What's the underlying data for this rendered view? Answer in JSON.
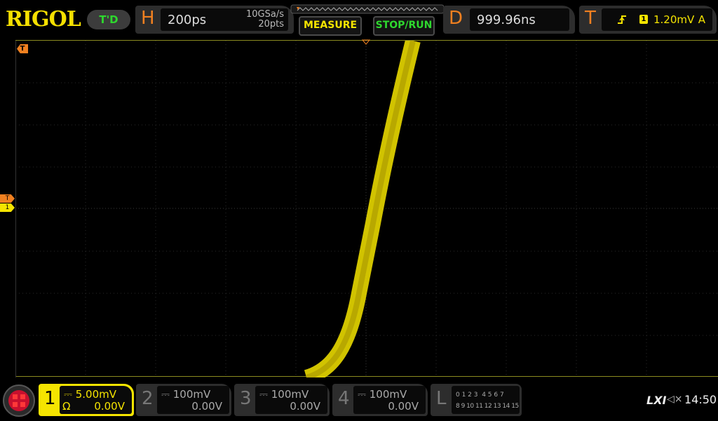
{
  "brand": "RIGOL",
  "mode_badge": "T'D",
  "horizontal": {
    "letter": "H",
    "timebase": "200ps",
    "sample_rate": "10GSa/s",
    "points": "20pts"
  },
  "buttons": {
    "measure": "MEASURE",
    "stop_run": "STOP/RUN"
  },
  "delay": {
    "letter": "D",
    "value": "999.96ns"
  },
  "trigger": {
    "letter": "T",
    "slope_icon": "rising-edge-icon",
    "source": "1",
    "level": "1.20mV",
    "mode": "A"
  },
  "markers": {
    "trigger_pos": "T",
    "trigger_level": "T",
    "channel1": "1"
  },
  "channels": [
    {
      "num": "1",
      "scale": "5.00mV",
      "offset": "0.00V",
      "impedance": "Ω",
      "active": true
    },
    {
      "num": "2",
      "scale": "100mV",
      "offset": "0.00V"
    },
    {
      "num": "3",
      "scale": "100mV",
      "offset": "0.00V"
    },
    {
      "num": "4",
      "scale": "100mV",
      "offset": "0.00V"
    }
  ],
  "logic": {
    "letter": "L",
    "row1": "0 1 2 3  4 5 6 7",
    "row2": "8 9 10 11 12 13 14 15"
  },
  "status": {
    "lxi": "LXI",
    "time": "14:50"
  },
  "colors": {
    "ch1": "#f5e400",
    "accent": "#f08020",
    "run": "#2ed82e"
  }
}
